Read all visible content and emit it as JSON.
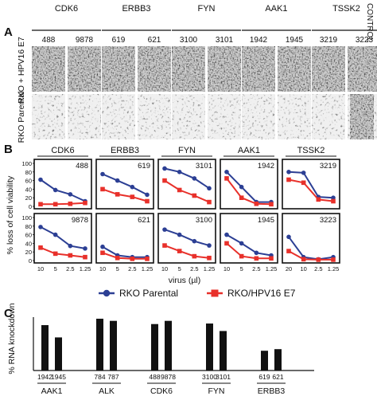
{
  "panel_a": {
    "label": "A",
    "groups": [
      {
        "gene": "CDK6",
        "clones": [
          "488",
          "9878"
        ]
      },
      {
        "gene": "ERBB3",
        "clones": [
          "619",
          "621"
        ]
      },
      {
        "gene": "FYN",
        "clones": [
          "3100",
          "3101"
        ]
      },
      {
        "gene": "AAK1",
        "clones": [
          "1942",
          "1945"
        ]
      },
      {
        "gene": "TSSK2",
        "clones": [
          "3219",
          "3223"
        ]
      }
    ],
    "control_label": "CONTROL",
    "row_labels": [
      "RKO + HPV16 E7",
      "RKO Parental"
    ]
  },
  "panel_b": {
    "label": "B",
    "genes": [
      "CDK6",
      "ERBB3",
      "FYN",
      "AAK1",
      "TSSK2"
    ],
    "ylabel": "% loss of cell viability",
    "xlabel": "virus (µl)",
    "legend": [
      "RKO Parental",
      "RKO/HPV16 E7"
    ],
    "colors": {
      "parental": "#2c3f94",
      "e7": "#e8302a"
    }
  },
  "panel_c": {
    "label": "C",
    "ylabel": "% RNA knockdown"
  },
  "chart_data": [
    {
      "type": "line",
      "panel": "B",
      "ylim": [
        0,
        100
      ],
      "yticks": [
        0,
        20,
        40,
        60,
        80,
        100
      ],
      "xticks_default": [
        "10",
        "5",
        "2.5",
        "1.25"
      ],
      "xticks_tssk2": [
        "20",
        "10",
        "2.5",
        "1.25"
      ],
      "series_names": [
        "RKO Parental",
        "RKO/HPV16 E7"
      ],
      "subplots": [
        {
          "gene": "CDK6",
          "clone": "488",
          "parental": [
            62,
            38,
            28,
            12
          ],
          "e7": [
            5,
            5,
            6,
            8
          ]
        },
        {
          "gene": "ERBB3",
          "clone": "619",
          "parental": [
            75,
            60,
            45,
            27
          ],
          "e7": [
            40,
            28,
            22,
            12
          ]
        },
        {
          "gene": "FYN",
          "clone": "3101",
          "parental": [
            88,
            80,
            65,
            42
          ],
          "e7": [
            60,
            38,
            25,
            10
          ]
        },
        {
          "gene": "AAK1",
          "clone": "1942",
          "parental": [
            80,
            45,
            10,
            10
          ],
          "e7": [
            65,
            20,
            6,
            5
          ]
        },
        {
          "gene": "TSSK2",
          "clone": "3219",
          "parental": [
            80,
            78,
            22,
            20
          ],
          "e7": [
            62,
            55,
            16,
            12
          ]
        },
        {
          "gene": "CDK6",
          "clone": "9878",
          "parental": [
            78,
            60,
            34,
            28
          ],
          "e7": [
            30,
            16,
            12,
            8
          ]
        },
        {
          "gene": "ERBB3",
          "clone": "621",
          "parental": [
            32,
            12,
            8,
            8
          ],
          "e7": [
            18,
            6,
            4,
            4
          ]
        },
        {
          "gene": "FYN",
          "clone": "3100",
          "parental": [
            72,
            60,
            45,
            35
          ],
          "e7": [
            35,
            22,
            10,
            6
          ]
        },
        {
          "gene": "AAK1",
          "clone": "1945",
          "parental": [
            60,
            40,
            18,
            12
          ],
          "e7": [
            40,
            10,
            5,
            5
          ]
        },
        {
          "gene": "TSSK2",
          "clone": "3223",
          "parental": [
            55,
            8,
            3,
            8
          ],
          "e7": [
            22,
            3,
            2,
            2
          ]
        }
      ]
    },
    {
      "type": "bar",
      "panel": "C",
      "ylabel": "% RNA knockdown",
      "ylim": [
        0,
        100
      ],
      "groups": [
        {
          "gene": "AAK1",
          "clones": [
            "1942",
            "1945"
          ],
          "values": [
            85,
            62
          ]
        },
        {
          "gene": "ALK",
          "clones": [
            "784",
            "787"
          ],
          "values": [
            97,
            93
          ]
        },
        {
          "gene": "CDK6",
          "clones": [
            "488",
            "9878"
          ],
          "values": [
            87,
            93
          ]
        },
        {
          "gene": "FYN",
          "clones": [
            "3100",
            "3101"
          ],
          "values": [
            88,
            74
          ]
        },
        {
          "gene": "ERBB3",
          "clones": [
            "619",
            "621"
          ],
          "values": [
            37,
            40
          ]
        }
      ]
    }
  ]
}
